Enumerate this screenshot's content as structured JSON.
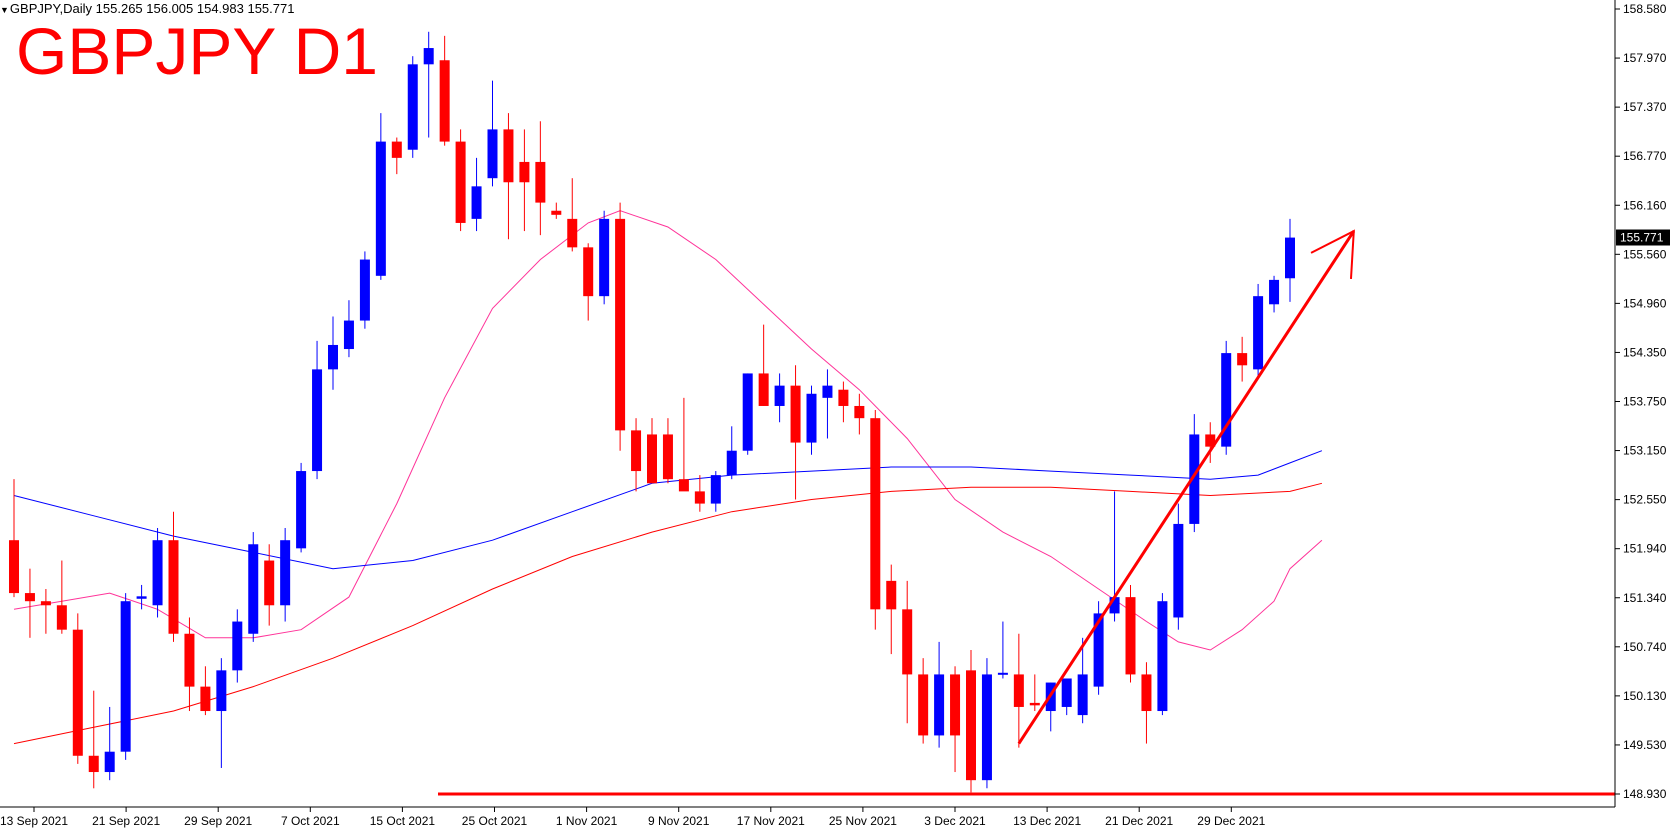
{
  "header": {
    "symbol_line": "GBPJPY,Daily  155.265 156.005 154.983 155.771",
    "title": "GBPJPY D1"
  },
  "colors": {
    "bull": "#0000ff",
    "bear": "#ff0000",
    "ma_fast": "#ff3399",
    "ma_mid": "#0000ff",
    "ma_slow": "#ff0000",
    "annotation": "#ff0000",
    "price_tag_bg": "#000000"
  },
  "chart_data": {
    "type": "candlestick",
    "symbol": "GBPJPY",
    "timeframe": "Daily",
    "ohlc_header": {
      "open": 155.265,
      "high": 156.005,
      "low": 154.983,
      "close": 155.771
    },
    "current_price_label": "155.771",
    "y_ticks": [
      "158.580",
      "157.970",
      "157.370",
      "156.770",
      "156.160",
      "155.560",
      "154.960",
      "154.350",
      "153.750",
      "153.150",
      "152.550",
      "151.940",
      "151.340",
      "150.740",
      "150.130",
      "149.530",
      "148.930"
    ],
    "x_ticks": [
      "13 Sep 2021",
      "21 Sep 2021",
      "29 Sep 2021",
      "7 Oct 2021",
      "15 Oct 2021",
      "25 Oct 2021",
      "1 Nov 2021",
      "9 Nov 2021",
      "17 Nov 2021",
      "25 Nov 2021",
      "3 Dec 2021",
      "13 Dec 2021",
      "21 Dec 2021",
      "29 Dec 2021"
    ],
    "ylim": [
      148.78,
      158.64
    ],
    "candles": [
      {
        "o": 152.05,
        "h": 152.8,
        "l": 151.35,
        "c": 151.4
      },
      {
        "o": 151.4,
        "h": 151.7,
        "l": 150.85,
        "c": 151.3
      },
      {
        "o": 151.3,
        "h": 151.45,
        "l": 150.9,
        "c": 151.25
      },
      {
        "o": 151.25,
        "h": 151.8,
        "l": 150.9,
        "c": 150.95
      },
      {
        "o": 150.95,
        "h": 151.15,
        "l": 149.3,
        "c": 149.4
      },
      {
        "o": 149.4,
        "h": 150.2,
        "l": 149.0,
        "c": 149.2
      },
      {
        "o": 149.2,
        "h": 150.0,
        "l": 149.1,
        "c": 149.45
      },
      {
        "o": 149.45,
        "h": 151.4,
        "l": 149.35,
        "c": 151.3
      },
      {
        "o": 151.33,
        "h": 151.5,
        "l": 151.2,
        "c": 151.36
      },
      {
        "o": 151.25,
        "h": 152.2,
        "l": 151.1,
        "c": 152.05
      },
      {
        "o": 152.05,
        "h": 152.4,
        "l": 150.8,
        "c": 150.9
      },
      {
        "o": 150.9,
        "h": 151.1,
        "l": 149.95,
        "c": 150.25
      },
      {
        "o": 150.25,
        "h": 150.5,
        "l": 149.9,
        "c": 149.95
      },
      {
        "o": 149.95,
        "h": 150.6,
        "l": 149.25,
        "c": 150.45
      },
      {
        "o": 150.45,
        "h": 151.2,
        "l": 150.3,
        "c": 151.05
      },
      {
        "o": 150.9,
        "h": 152.15,
        "l": 150.8,
        "c": 152.0
      },
      {
        "o": 151.8,
        "h": 152.0,
        "l": 151.0,
        "c": 151.25
      },
      {
        "o": 151.25,
        "h": 152.2,
        "l": 151.05,
        "c": 152.05
      },
      {
        "o": 151.95,
        "h": 153.0,
        "l": 151.9,
        "c": 152.9
      },
      {
        "o": 152.9,
        "h": 154.5,
        "l": 152.8,
        "c": 154.15
      },
      {
        "o": 154.15,
        "h": 154.8,
        "l": 153.9,
        "c": 154.45
      },
      {
        "o": 154.4,
        "h": 155.0,
        "l": 154.3,
        "c": 154.75
      },
      {
        "o": 154.75,
        "h": 155.6,
        "l": 154.65,
        "c": 155.5
      },
      {
        "o": 155.3,
        "h": 157.3,
        "l": 155.25,
        "c": 156.95
      },
      {
        "o": 156.95,
        "h": 157.0,
        "l": 156.55,
        "c": 156.75
      },
      {
        "o": 156.85,
        "h": 158.0,
        "l": 156.75,
        "c": 157.9
      },
      {
        "o": 157.9,
        "h": 158.3,
        "l": 157.0,
        "c": 158.1
      },
      {
        "o": 157.95,
        "h": 158.25,
        "l": 156.9,
        "c": 156.95
      },
      {
        "o": 156.95,
        "h": 157.1,
        "l": 155.85,
        "c": 155.95
      },
      {
        "o": 156.0,
        "h": 156.75,
        "l": 155.85,
        "c": 156.4
      },
      {
        "o": 156.5,
        "h": 157.7,
        "l": 156.4,
        "c": 157.1
      },
      {
        "o": 157.1,
        "h": 157.3,
        "l": 155.75,
        "c": 156.45
      },
      {
        "o": 156.7,
        "h": 157.1,
        "l": 155.85,
        "c": 156.45
      },
      {
        "o": 156.7,
        "h": 157.2,
        "l": 155.8,
        "c": 156.2
      },
      {
        "o": 156.1,
        "h": 156.2,
        "l": 156.0,
        "c": 156.05
      },
      {
        "o": 156.0,
        "h": 156.5,
        "l": 155.6,
        "c": 155.65
      },
      {
        "o": 155.65,
        "h": 155.7,
        "l": 154.75,
        "c": 155.05
      },
      {
        "o": 155.05,
        "h": 156.1,
        "l": 154.95,
        "c": 156.0
      },
      {
        "o": 156.0,
        "h": 156.2,
        "l": 153.15,
        "c": 153.4
      },
      {
        "o": 153.4,
        "h": 153.55,
        "l": 152.65,
        "c": 152.9
      },
      {
        "o": 153.35,
        "h": 153.55,
        "l": 152.75,
        "c": 152.75
      },
      {
        "o": 153.35,
        "h": 153.55,
        "l": 152.75,
        "c": 152.8
      },
      {
        "o": 152.8,
        "h": 153.8,
        "l": 152.7,
        "c": 152.65
      },
      {
        "o": 152.65,
        "h": 152.85,
        "l": 152.4,
        "c": 152.5
      },
      {
        "o": 152.5,
        "h": 152.9,
        "l": 152.4,
        "c": 152.85
      },
      {
        "o": 152.85,
        "h": 153.45,
        "l": 152.8,
        "c": 153.15
      },
      {
        "o": 153.15,
        "h": 154.1,
        "l": 153.1,
        "c": 154.1
      },
      {
        "o": 154.1,
        "h": 154.7,
        "l": 153.7,
        "c": 153.7
      },
      {
        "o": 153.7,
        "h": 154.1,
        "l": 153.5,
        "c": 153.95
      },
      {
        "o": 153.95,
        "h": 154.2,
        "l": 152.55,
        "c": 153.25
      },
      {
        "o": 153.25,
        "h": 153.95,
        "l": 153.1,
        "c": 153.85
      },
      {
        "o": 153.8,
        "h": 154.15,
        "l": 153.3,
        "c": 153.95
      },
      {
        "o": 153.9,
        "h": 154.0,
        "l": 153.5,
        "c": 153.7
      },
      {
        "o": 153.7,
        "h": 153.85,
        "l": 153.35,
        "c": 153.55
      },
      {
        "o": 153.55,
        "h": 153.65,
        "l": 150.95,
        "c": 151.2
      },
      {
        "o": 151.55,
        "h": 151.75,
        "l": 150.65,
        "c": 151.2
      },
      {
        "o": 151.2,
        "h": 151.55,
        "l": 149.8,
        "c": 150.4
      },
      {
        "o": 150.4,
        "h": 150.6,
        "l": 149.55,
        "c": 149.65
      },
      {
        "o": 149.65,
        "h": 150.8,
        "l": 149.5,
        "c": 150.4
      },
      {
        "o": 150.4,
        "h": 150.5,
        "l": 149.2,
        "c": 149.65
      },
      {
        "o": 150.45,
        "h": 150.7,
        "l": 148.95,
        "c": 149.1
      },
      {
        "o": 149.1,
        "h": 150.6,
        "l": 149.0,
        "c": 150.4
      },
      {
        "o": 150.4,
        "h": 151.05,
        "l": 150.35,
        "c": 150.42
      },
      {
        "o": 150.4,
        "h": 150.9,
        "l": 149.5,
        "c": 150.0
      },
      {
        "o": 150.05,
        "h": 150.4,
        "l": 149.95,
        "c": 150.02
      },
      {
        "o": 149.95,
        "h": 150.3,
        "l": 149.7,
        "c": 150.3
      },
      {
        "o": 150.0,
        "h": 150.35,
        "l": 149.9,
        "c": 150.35
      },
      {
        "o": 149.9,
        "h": 150.85,
        "l": 149.8,
        "c": 150.4
      },
      {
        "o": 150.25,
        "h": 151.3,
        "l": 150.15,
        "c": 151.15
      },
      {
        "o": 151.15,
        "h": 152.65,
        "l": 151.05,
        "c": 151.35
      },
      {
        "o": 151.35,
        "h": 151.5,
        "l": 150.3,
        "c": 150.4
      },
      {
        "o": 150.4,
        "h": 150.55,
        "l": 149.55,
        "c": 149.95
      },
      {
        "o": 149.95,
        "h": 151.4,
        "l": 149.9,
        "c": 151.3
      },
      {
        "o": 151.1,
        "h": 152.5,
        "l": 150.95,
        "c": 152.25
      },
      {
        "o": 152.25,
        "h": 153.6,
        "l": 152.15,
        "c": 153.35
      },
      {
        "o": 153.35,
        "h": 153.5,
        "l": 153.0,
        "c": 153.2
      },
      {
        "o": 153.2,
        "h": 154.5,
        "l": 153.1,
        "c": 154.35
      },
      {
        "o": 154.35,
        "h": 154.55,
        "l": 154.0,
        "c": 154.2
      },
      {
        "o": 154.15,
        "h": 155.2,
        "l": 154.05,
        "c": 155.05
      },
      {
        "o": 154.95,
        "h": 155.3,
        "l": 154.85,
        "c": 155.25
      },
      {
        "o": 155.27,
        "h": 156.0,
        "l": 154.98,
        "c": 155.77
      }
    ],
    "moving_averages": [
      {
        "name": "ma_fast",
        "color": "#ff3399",
        "points": [
          [
            0,
            151.2
          ],
          [
            3,
            151.3
          ],
          [
            6,
            151.4
          ],
          [
            9,
            151.2
          ],
          [
            12,
            150.85
          ],
          [
            15,
            150.85
          ],
          [
            18,
            150.95
          ],
          [
            21,
            151.35
          ],
          [
            24,
            152.5
          ],
          [
            27,
            153.8
          ],
          [
            30,
            154.9
          ],
          [
            33,
            155.5
          ],
          [
            36,
            155.95
          ],
          [
            38,
            156.1
          ],
          [
            41,
            155.9
          ],
          [
            44,
            155.5
          ],
          [
            47,
            154.95
          ],
          [
            50,
            154.4
          ],
          [
            53,
            153.9
          ],
          [
            56,
            153.3
          ],
          [
            59,
            152.55
          ],
          [
            62,
            152.15
          ],
          [
            65,
            151.85
          ],
          [
            68,
            151.45
          ],
          [
            71,
            151.05
          ],
          [
            73,
            150.8
          ],
          [
            75,
            150.7
          ],
          [
            77,
            150.95
          ],
          [
            79,
            151.3
          ],
          [
            80,
            151.7
          ],
          [
            82,
            152.05
          ]
        ]
      },
      {
        "name": "ma_mid",
        "color": "#0000ff",
        "points": [
          [
            0,
            152.6
          ],
          [
            5,
            152.35
          ],
          [
            10,
            152.1
          ],
          [
            15,
            151.9
          ],
          [
            20,
            151.7
          ],
          [
            25,
            151.8
          ],
          [
            30,
            152.05
          ],
          [
            35,
            152.4
          ],
          [
            40,
            152.75
          ],
          [
            45,
            152.85
          ],
          [
            50,
            152.9
          ],
          [
            55,
            152.95
          ],
          [
            60,
            152.95
          ],
          [
            65,
            152.9
          ],
          [
            70,
            152.85
          ],
          [
            75,
            152.8
          ],
          [
            78,
            152.85
          ],
          [
            80,
            153.0
          ],
          [
            82,
            153.15
          ]
        ]
      },
      {
        "name": "ma_slow",
        "color": "#ff0000",
        "points": [
          [
            0,
            149.55
          ],
          [
            5,
            149.75
          ],
          [
            10,
            149.95
          ],
          [
            15,
            150.25
          ],
          [
            20,
            150.6
          ],
          [
            25,
            151.0
          ],
          [
            30,
            151.45
          ],
          [
            35,
            151.85
          ],
          [
            40,
            152.15
          ],
          [
            45,
            152.4
          ],
          [
            50,
            152.55
          ],
          [
            55,
            152.65
          ],
          [
            60,
            152.7
          ],
          [
            65,
            152.7
          ],
          [
            70,
            152.65
          ],
          [
            75,
            152.6
          ],
          [
            80,
            152.65
          ],
          [
            82,
            152.75
          ]
        ]
      }
    ],
    "annotations": {
      "support_level": 148.93,
      "trend_arrow": {
        "from_index": 63,
        "from_price": 149.55,
        "to_index": 84,
        "to_price": 155.85
      }
    }
  }
}
